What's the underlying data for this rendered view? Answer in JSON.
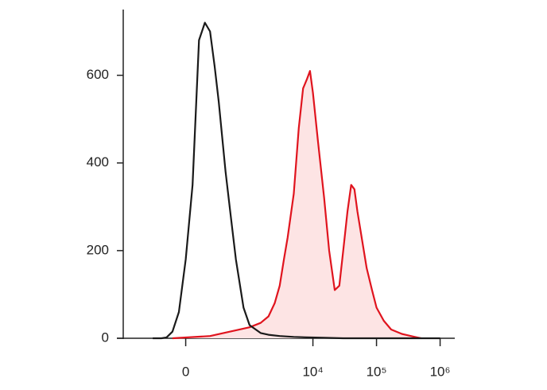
{
  "chart_data": {
    "type": "line",
    "xscale": "biexponential",
    "xlim": [
      -1200,
      1700000
    ],
    "xticks": [
      0,
      {
        "value": 10000,
        "label": "10⁴"
      },
      {
        "value": 100000,
        "label": "10⁵"
      },
      {
        "value": 1000000,
        "label": "10⁶"
      }
    ],
    "ylim": [
      0,
      750
    ],
    "yticks": [
      0,
      200,
      400,
      600
    ],
    "series": [
      {
        "color": "#1a1a1a",
        "x": [
          -300,
          -200,
          -150,
          -100,
          -50,
          0,
          50,
          100,
          150,
          200,
          250,
          300,
          400,
          500,
          600,
          800,
          1000,
          1500,
          2000,
          3000,
          5000,
          8000,
          15000,
          30000,
          100000,
          1000000
        ],
        "values": [
          0,
          0,
          2,
          15,
          60,
          180,
          350,
          680,
          720,
          700,
          620,
          540,
          380,
          270,
          180,
          70,
          30,
          12,
          8,
          5,
          3,
          2,
          1,
          0,
          0,
          0
        ]
      },
      {
        "color": "#e0141e",
        "fill": "#fde4e4",
        "x": [
          -100,
          200,
          1000,
          1500,
          2000,
          2500,
          3000,
          3500,
          4000,
          5000,
          6000,
          7000,
          8000,
          9000,
          10000,
          12000,
          15000,
          18000,
          22000,
          26000,
          30000,
          35000,
          40000,
          45000,
          50000,
          60000,
          70000,
          85000,
          100000,
          130000,
          170000,
          250000,
          400000,
          500000
        ],
        "values": [
          0,
          5,
          25,
          35,
          50,
          80,
          120,
          180,
          230,
          330,
          480,
          570,
          590,
          610,
          560,
          450,
          320,
          200,
          110,
          120,
          200,
          290,
          350,
          340,
          290,
          220,
          160,
          110,
          70,
          40,
          20,
          10,
          3,
          0
        ]
      }
    ]
  }
}
